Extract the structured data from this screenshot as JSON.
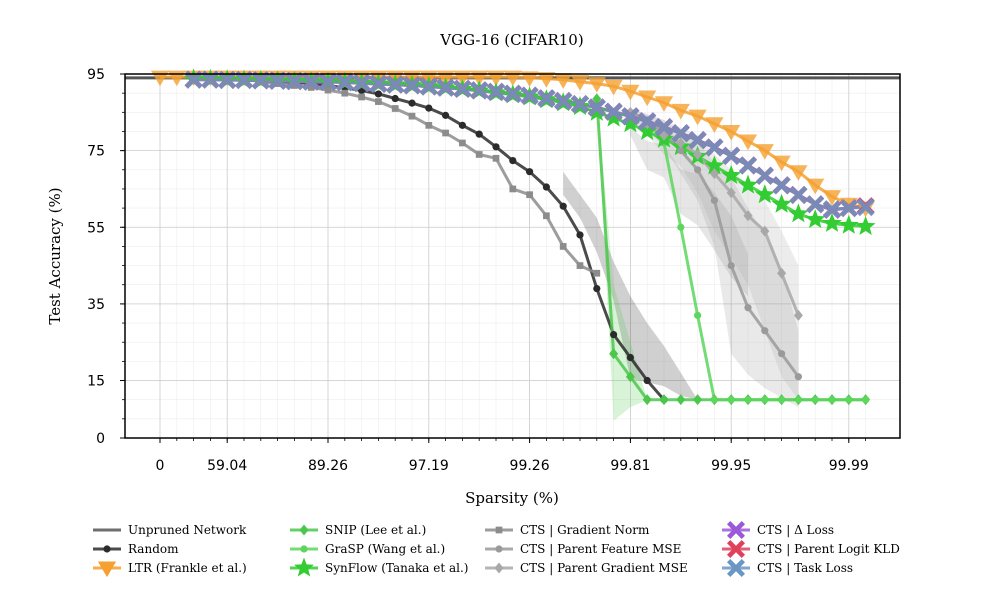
{
  "chart_data": {
    "type": "line",
    "title": "VGG-16 (CIFAR10)",
    "xlabel": "Sparsity (%)",
    "ylabel": "Test Accuracy (%)",
    "ylim": [
      0,
      95
    ],
    "x_tick_labels": [
      "0",
      "59.04",
      "89.26",
      "97.19",
      "99.26",
      "99.81",
      "99.95",
      "99.99"
    ],
    "y_ticks": [
      0,
      15,
      35,
      55,
      75,
      95
    ],
    "grid": true,
    "legend_position": "bottom",
    "x_points": [
      "0",
      "20",
      "36",
      "48.8",
      "59.04",
      "67.23",
      "73.79",
      "79.03",
      "83.22",
      "86.58",
      "89.26",
      "91.41",
      "93.13",
      "94.5",
      "95.6",
      "96.48",
      "97.19",
      "97.75",
      "98.2",
      "98.56",
      "98.85",
      "99.08",
      "99.26",
      "99.41",
      "99.53",
      "99.62",
      "99.7",
      "99.76",
      "99.81",
      "99.85",
      "99.88",
      "99.9",
      "99.92",
      "99.94",
      "99.95",
      "99.96",
      "99.969",
      "99.975",
      "99.98",
      "99.984",
      "99.987",
      "99.99",
      "99.992"
    ],
    "reference": {
      "name": "Unpruned Network",
      "value": 94,
      "color": "#555555"
    },
    "series": [
      {
        "name": "Random",
        "color": "#2b2b2b",
        "marker": "circle",
        "x_index_start": 2,
        "values": [
          93.7,
          93.6,
          93.5,
          93.4,
          93.2,
          93.0,
          92.8,
          92.5,
          92.0,
          91.4,
          90.7,
          89.8,
          88.6,
          87.4,
          86.1,
          84.2,
          81.6,
          79.3,
          76.0,
          72.4,
          69.5,
          65.5,
          60.5,
          53.0,
          39.0,
          27.0,
          21.0,
          15.0,
          10.0
        ],
        "band_x_index_start": 24,
        "band_low": [
          63.5,
          57.5,
          48.5,
          36.0,
          15.5,
          14.5,
          13.5,
          11.0,
          10.0
        ],
        "band_high": [
          69.5,
          63.5,
          57.5,
          46.0,
          37.0,
          30.0,
          24.0,
          17.0,
          10.0
        ]
      },
      {
        "name": "LTR (Frankle et al.)",
        "color": "#f5a030",
        "marker": "triangle-down",
        "x_index_start": 0,
        "values": [
          94.2,
          94.2,
          94.2,
          94.2,
          94.2,
          94.2,
          94.2,
          94.2,
          94.2,
          94.2,
          94.2,
          94.2,
          94.2,
          94.2,
          94.2,
          94.2,
          94.2,
          94.2,
          94.2,
          94.2,
          94.2,
          94.2,
          94.0,
          93.8,
          93.5,
          93.0,
          92.5,
          91.8,
          90.5,
          89.0,
          87.5,
          85.5,
          84.0,
          82.0,
          80.0,
          77.5,
          75.0,
          72.0,
          69.5,
          66.0,
          63.0,
          61.0,
          60.0
        ]
      },
      {
        "name": "SNIP (Lee et al.)",
        "color": "#4cc74c",
        "marker": "diamond",
        "x_index_start": 26,
        "values": [
          88.5,
          22.0,
          16.0,
          10.0,
          10.0,
          10.0,
          10.0,
          10.0,
          10.0,
          10.0,
          10.0,
          10.0,
          10.0,
          10.0,
          10.0,
          10.0,
          10.0
        ],
        "band_x_index_start": 26,
        "band_low": [
          88.5,
          4.5,
          8.0,
          10.0
        ],
        "band_high": [
          88.5,
          40.0,
          25.0,
          10.0
        ]
      },
      {
        "name": "GraSP (Wang et al.)",
        "color": "#5cd65c",
        "marker": "circle",
        "x_index_start": 28,
        "values": [
          85.0,
          83.0,
          77.0,
          55.0,
          32.0,
          10.0,
          10.0,
          10.0,
          10.0,
          10.0,
          10.0,
          10.0,
          10.0,
          10.0,
          10.0
        ]
      },
      {
        "name": "SynFlow (Tanaka et al.)",
        "color": "#33cc33",
        "marker": "star",
        "x_index_start": 2,
        "values": [
          93.7,
          93.6,
          93.5,
          93.4,
          93.3,
          93.2,
          93.1,
          93.0,
          92.9,
          92.8,
          92.6,
          92.4,
          92.2,
          92.0,
          91.7,
          91.4,
          91.0,
          90.6,
          90.1,
          89.6,
          89.0,
          88.3,
          87.5,
          86.5,
          85.0,
          83.5,
          82.0,
          80.0,
          78.0,
          76.0,
          73.5,
          71.0,
          68.5,
          66.0,
          63.5,
          61.0,
          58.5,
          57.0,
          56.0,
          55.5,
          55.2
        ]
      },
      {
        "name": "CTS | Gradient Norm",
        "color": "#8c8c8c",
        "marker": "square",
        "x_index_start": 6,
        "values": [
          93.0,
          92.5,
          92.0,
          91.5,
          90.8,
          90.0,
          89.0,
          87.8,
          86.0,
          84.0,
          81.6,
          79.6,
          77.0,
          74.0,
          73.0,
          65.0,
          63.5,
          58.0,
          50.0,
          45.0,
          43.0
        ],
        "band_x_index_start": 28,
        "band_low": [
          79.0,
          70.0,
          68.0,
          58.5,
          55.5,
          49.0,
          42.0,
          37.0
        ],
        "band_high": [
          81.0,
          77.5,
          76.5,
          70.0,
          69.0,
          64.0,
          58.0,
          48.0
        ]
      },
      {
        "name": "CTS | Parent Feature MSE",
        "color": "#9a9a9a",
        "marker": "circle",
        "x_index_start": 28,
        "values": [
          85.0,
          83.0,
          80.0,
          75.0,
          70.0,
          62.0,
          45.0,
          34.0,
          28.0,
          22.0,
          16.0
        ],
        "band_x_index_start": 28,
        "band_low": [
          83.5,
          80.0,
          76.0,
          69.0,
          62.0,
          50.0,
          22.0,
          16.5,
          13.0,
          10.5,
          8.0
        ],
        "band_high": [
          86.0,
          84.5,
          83.0,
          79.5,
          77.0,
          72.0,
          68.0,
          60.0,
          53.0,
          44.0,
          28.0
        ]
      },
      {
        "name": "CTS | Parent Gradient MSE",
        "color": "#a8a8a8",
        "marker": "diamond",
        "x_index_start": 28,
        "values": [
          85.0,
          82.0,
          79.0,
          77.0,
          74.0,
          69.0,
          64.0,
          58.0,
          54.0,
          43.0,
          32.0
        ],
        "band_x_index_start": 28,
        "band_low": [
          83.5,
          79.0,
          74.0,
          71.0,
          64.0,
          54.0,
          47.0,
          40.0,
          28.0,
          16.0,
          10.0
        ],
        "band_high": [
          86.0,
          84.5,
          83.0,
          81.0,
          79.0,
          74.0,
          70.0,
          66.0,
          62.0,
          54.0,
          45.0
        ]
      },
      {
        "name": "CTS | Δ Loss",
        "color": "#9b59d9",
        "marker": "x-cross",
        "x_index_start": 2,
        "values": [
          93.6,
          93.6,
          93.5,
          93.5,
          93.4,
          93.3,
          93.2,
          93.1,
          93.0,
          92.9,
          92.7,
          92.5,
          92.3,
          92.1,
          91.8,
          91.5,
          91.2,
          90.8,
          90.4,
          89.9,
          89.4,
          88.7,
          88.0,
          87.2,
          86.3,
          85.2,
          84.0,
          82.7,
          81.2,
          79.6,
          77.8,
          75.9,
          73.7,
          71.2,
          68.5,
          66.0,
          63.5,
          61.0,
          59.5,
          60.0,
          60.5
        ]
      },
      {
        "name": "CTS | Parent Logit KLD",
        "color": "#e0405a",
        "marker": "x-cross",
        "x_index_start": 2,
        "values": [
          93.5,
          93.5,
          93.4,
          93.4,
          93.3,
          93.2,
          93.1,
          93.0,
          92.9,
          92.8,
          92.6,
          92.4,
          92.2,
          92.0,
          91.7,
          91.4,
          91.1,
          90.7,
          90.3,
          89.8,
          89.3,
          88.6,
          87.9,
          87.1,
          86.2,
          85.1,
          83.9,
          82.6,
          81.1,
          79.5,
          77.7,
          75.8,
          73.6,
          71.1,
          68.4,
          65.9,
          63.4,
          61.0,
          59.7,
          60.0,
          60.5
        ]
      },
      {
        "name": "CTS | Task Loss",
        "color": "#6a97c4",
        "marker": "x-cross",
        "x_index_start": 2,
        "values": [
          93.5,
          93.5,
          93.4,
          93.4,
          93.3,
          93.2,
          93.1,
          93.0,
          92.9,
          92.8,
          92.6,
          92.4,
          92.2,
          92.0,
          91.7,
          91.4,
          91.1,
          90.7,
          90.3,
          89.8,
          89.3,
          88.6,
          87.9,
          87.1,
          86.2,
          85.1,
          83.9,
          82.6,
          81.1,
          79.5,
          77.7,
          75.8,
          73.6,
          71.1,
          68.4,
          65.9,
          63.4,
          61.0,
          59.7,
          60.0,
          60.2
        ]
      }
    ]
  }
}
